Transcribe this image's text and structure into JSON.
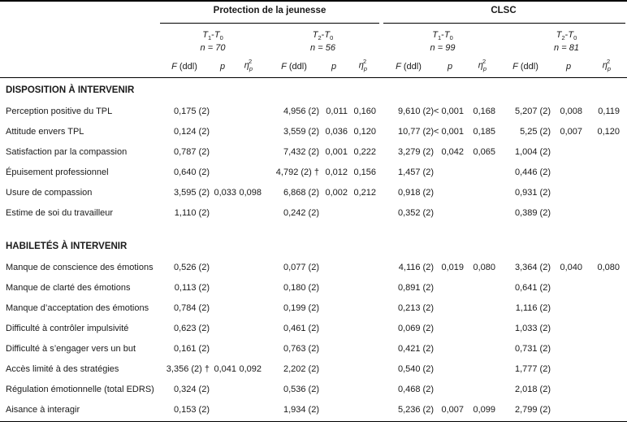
{
  "groups": [
    {
      "title": "Protection de la jeunesse",
      "subgroups": [
        {
          "t": "T",
          "a": "1",
          "b": "T",
          "c": "0",
          "n": "n = 70"
        },
        {
          "t": "T",
          "a": "2",
          "b": "T",
          "c": "0",
          "n": "n = 56"
        }
      ]
    },
    {
      "title": "CLSC",
      "subgroups": [
        {
          "t": "T",
          "a": "1",
          "b": "T",
          "c": "0",
          "n": "n = 99"
        },
        {
          "t": "T",
          "a": "2",
          "b": "T",
          "c": "0",
          "n": "n = 81"
        }
      ]
    }
  ],
  "column_headers": {
    "f": "F (ddl)",
    "p": "p",
    "eta": "η",
    "eta_sub": "p",
    "eta_sup": "2"
  },
  "sections": [
    {
      "title": "DISPOSITION À INTERVENIR",
      "rows": [
        {
          "label": "Perception positive du TPL",
          "cells": [
            "0,175 (2)",
            "",
            "",
            "4,956 (2)",
            "0,011",
            "0,160",
            "9,610 (2)",
            "< 0,001",
            "0,168",
            "5,207 (2)",
            "0,008",
            "0,119"
          ]
        },
        {
          "label": "Attitude envers TPL",
          "cells": [
            "0,124 (2)",
            "",
            "",
            "3,559 (2)",
            "0,036",
            "0,120",
            "10,77 (2)",
            "< 0,001",
            "0,185",
            "5,25 (2)",
            "0,007",
            "0,120"
          ]
        },
        {
          "label": "Satisfaction par la compassion",
          "cells": [
            "0,787 (2)",
            "",
            "",
            "7,432 (2)",
            "0,001",
            "0,222",
            "3,279 (2)",
            "0,042",
            "0,065",
            "1,004 (2)",
            "",
            ""
          ]
        },
        {
          "label": "Épuisement professionnel",
          "cells": [
            "0,640 (2)",
            "",
            "",
            "4,792 (2) †",
            "0,012",
            "0,156",
            "1,457 (2)",
            "",
            "",
            "0,446 (2)",
            "",
            ""
          ]
        },
        {
          "label": "Usure de compassion",
          "cells": [
            "3,595 (2)",
            "0,033",
            "0,098",
            "6,868 (2)",
            "0,002",
            "0,212",
            "0,918 (2)",
            "",
            "",
            "0,931 (2)",
            "",
            ""
          ]
        },
        {
          "label": "Estime de soi du travailleur",
          "cells": [
            "1,110 (2)",
            "",
            "",
            "0,242 (2)",
            "",
            "",
            "0,352 (2)",
            "",
            "",
            "0,389 (2)",
            "",
            ""
          ]
        }
      ]
    },
    {
      "title": "HABILETÉS À INTERVENIR",
      "rows": [
        {
          "label": "Manque de conscience des émotions",
          "cells": [
            "0,526 (2)",
            "",
            "",
            "0,077 (2)",
            "",
            "",
            "4,116 (2)",
            "0,019",
            "0,080",
            "3,364 (2)",
            "0,040",
            "0,080"
          ]
        },
        {
          "label": "Manque de clarté des émotions",
          "cells": [
            "0,113 (2)",
            "",
            "",
            "0,180 (2)",
            "",
            "",
            "0,891 (2)",
            "",
            "",
            "0,641 (2)",
            "",
            ""
          ]
        },
        {
          "label": "Manque d’acceptation des émotions",
          "cells": [
            "0,784 (2)",
            "",
            "",
            "0,199 (2)",
            "",
            "",
            "0,213 (2)",
            "",
            "",
            "1,116 (2)",
            "",
            ""
          ]
        },
        {
          "label": "Difficulté à contrôler impulsivité",
          "cells": [
            "0,623 (2)",
            "",
            "",
            "0,461 (2)",
            "",
            "",
            "0,069 (2)",
            "",
            "",
            "1,033 (2)",
            "",
            ""
          ]
        },
        {
          "label": "Difficulté à s’engager vers un but",
          "cells": [
            "0,161 (2)",
            "",
            "",
            "0,763 (2)",
            "",
            "",
            "0,421 (2)",
            "",
            "",
            "0,731 (2)",
            "",
            ""
          ]
        },
        {
          "label": "Accès limité à des stratégies",
          "cells": [
            "3,356 (2) †",
            "0,041",
            "0,092",
            "2,202 (2)",
            "",
            "",
            "0,540 (2)",
            "",
            "",
            "1,777 (2)",
            "",
            ""
          ]
        },
        {
          "label": "Régulation émotionnelle (total EDRS)",
          "cells": [
            "0,324 (2)",
            "",
            "",
            "0,536 (2)",
            "",
            "",
            "0,468 (2)",
            "",
            "",
            "2,018 (2)",
            "",
            ""
          ]
        },
        {
          "label": "Aisance à interagir",
          "cells": [
            "0,153 (2)",
            "",
            "",
            "1,934 (2)",
            "",
            "",
            "5,236 (2)",
            "0,007",
            "0,099",
            "2,799 (2)",
            "",
            ""
          ]
        }
      ]
    }
  ]
}
